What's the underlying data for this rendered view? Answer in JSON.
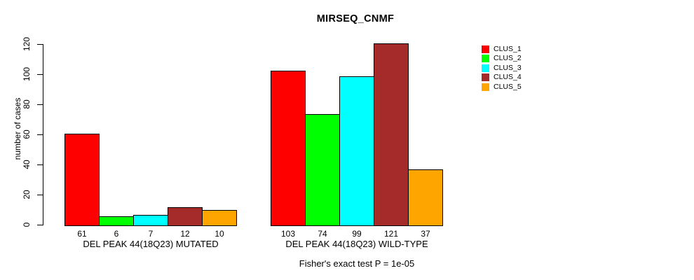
{
  "chart_data": {
    "type": "bar",
    "title": "MIRSEQ_CNMF",
    "ylabel": "number of cases",
    "ylim": [
      0,
      120
    ],
    "yticks": [
      0,
      20,
      40,
      60,
      80,
      100,
      120
    ],
    "grid": false,
    "legend_position": "right",
    "categories": [
      "DEL PEAK 44(18Q23) MUTATED",
      "DEL PEAK 44(18Q23) WILD-TYPE"
    ],
    "series": [
      {
        "name": "CLUS_1",
        "color": "#ff0000",
        "values": [
          61,
          103
        ]
      },
      {
        "name": "CLUS_2",
        "color": "#00ff00",
        "values": [
          6,
          74
        ]
      },
      {
        "name": "CLUS_3",
        "color": "#00ffff",
        "values": [
          7,
          99
        ]
      },
      {
        "name": "CLUS_4",
        "color": "#a52a2a",
        "values": [
          12,
          121
        ]
      },
      {
        "name": "CLUS_5",
        "color": "#ffa500",
        "values": [
          10,
          37
        ]
      }
    ],
    "show_bar_value_labels": true,
    "annotation": "Fisher's exact test P = 1e-05"
  },
  "colors": {
    "axis": "#000000",
    "text": "#000000",
    "background": "#ffffff"
  }
}
